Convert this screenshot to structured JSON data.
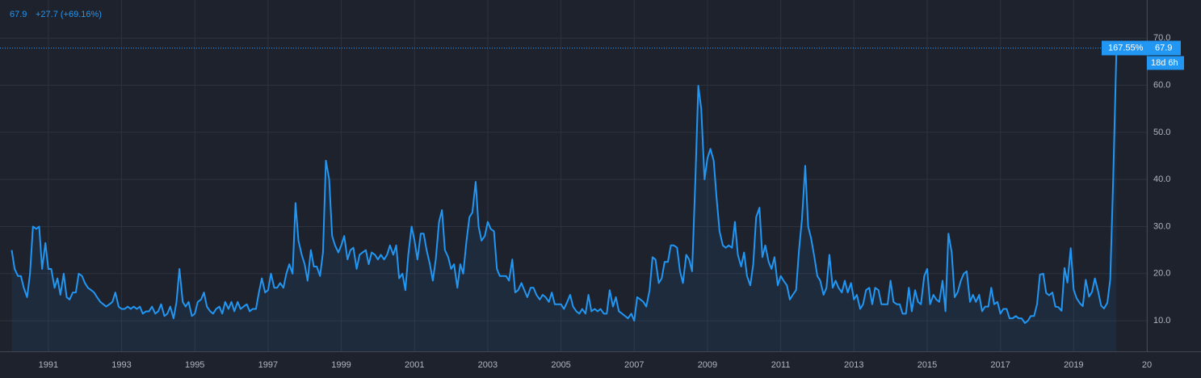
{
  "chart_data": {
    "type": "line",
    "header_change": "+27.7 (+69.16%)",
    "price_label_percent": "167.55%",
    "countdown": "18d 6h",
    "color": "#2196f3",
    "grid": true,
    "xlim": [
      1989.68,
      2021.0
    ],
    "xticks": [
      1991,
      1993,
      1995,
      1997,
      1999,
      2001,
      2003,
      2005,
      2007,
      2009,
      2011,
      2013,
      2015,
      2017,
      2019,
      {
        "value": 2021,
        "label": "20"
      }
    ],
    "ylim": [
      3.5,
      78.1
    ],
    "yticks": [
      {
        "value": 10,
        "label": "10.0"
      },
      {
        "value": 20,
        "label": "20.0"
      },
      {
        "value": 30,
        "label": "30.0"
      },
      {
        "value": 40,
        "label": "40.0"
      },
      {
        "value": 50,
        "label": "50.0"
      },
      {
        "value": 60,
        "label": "60.0"
      },
      {
        "value": 70,
        "label": "70.0"
      }
    ],
    "x": [
      1990,
      1990.08,
      1990.17,
      1990.25,
      1990.33,
      1990.42,
      1990.5,
      1990.58,
      1990.67,
      1990.75,
      1990.83,
      1990.92,
      1991,
      1991.08,
      1991.17,
      1991.25,
      1991.33,
      1991.42,
      1991.5,
      1991.58,
      1991.67,
      1991.75,
      1991.83,
      1991.92,
      1992,
      1992.08,
      1992.17,
      1992.25,
      1992.33,
      1992.42,
      1992.5,
      1992.58,
      1992.67,
      1992.75,
      1992.83,
      1992.92,
      1993,
      1993.08,
      1993.17,
      1993.25,
      1993.33,
      1993.42,
      1993.5,
      1993.58,
      1993.67,
      1993.75,
      1993.83,
      1993.92,
      1994,
      1994.08,
      1994.17,
      1994.25,
      1994.33,
      1994.42,
      1994.5,
      1994.58,
      1994.67,
      1994.75,
      1994.83,
      1994.92,
      1995,
      1995.08,
      1995.17,
      1995.25,
      1995.33,
      1995.42,
      1995.5,
      1995.58,
      1995.67,
      1995.75,
      1995.83,
      1995.92,
      1996,
      1996.08,
      1996.17,
      1996.25,
      1996.33,
      1996.42,
      1996.5,
      1996.58,
      1996.67,
      1996.75,
      1996.83,
      1996.92,
      1997,
      1997.08,
      1997.17,
      1997.25,
      1997.33,
      1997.42,
      1997.5,
      1997.58,
      1997.67,
      1997.75,
      1997.83,
      1997.92,
      1998,
      1998.08,
      1998.17,
      1998.25,
      1998.33,
      1998.42,
      1998.5,
      1998.58,
      1998.67,
      1998.75,
      1998.83,
      1998.92,
      1999,
      1999.08,
      1999.17,
      1999.25,
      1999.33,
      1999.42,
      1999.5,
      1999.58,
      1999.67,
      1999.75,
      1999.83,
      1999.92,
      2000,
      2000.08,
      2000.17,
      2000.25,
      2000.33,
      2000.42,
      2000.5,
      2000.58,
      2000.67,
      2000.75,
      2000.83,
      2000.92,
      2001,
      2001.08,
      2001.17,
      2001.25,
      2001.33,
      2001.42,
      2001.5,
      2001.58,
      2001.67,
      2001.75,
      2001.83,
      2001.92,
      2002,
      2002.08,
      2002.17,
      2002.25,
      2002.33,
      2002.42,
      2002.5,
      2002.58,
      2002.67,
      2002.75,
      2002.83,
      2002.92,
      2003,
      2003.08,
      2003.17,
      2003.25,
      2003.33,
      2003.42,
      2003.5,
      2003.58,
      2003.67,
      2003.75,
      2003.83,
      2003.92,
      2004,
      2004.08,
      2004.17,
      2004.25,
      2004.33,
      2004.42,
      2004.5,
      2004.58,
      2004.67,
      2004.75,
      2004.83,
      2004.92,
      2005,
      2005.08,
      2005.17,
      2005.25,
      2005.33,
      2005.42,
      2005.5,
      2005.58,
      2005.67,
      2005.75,
      2005.83,
      2005.92,
      2006,
      2006.08,
      2006.17,
      2006.25,
      2006.33,
      2006.42,
      2006.5,
      2006.58,
      2006.67,
      2006.75,
      2006.83,
      2006.92,
      2007,
      2007.08,
      2007.17,
      2007.25,
      2007.33,
      2007.42,
      2007.5,
      2007.58,
      2007.67,
      2007.75,
      2007.83,
      2007.92,
      2008,
      2008.08,
      2008.17,
      2008.25,
      2008.33,
      2008.42,
      2008.5,
      2008.58,
      2008.67,
      2008.75,
      2008.83,
      2008.92,
      2009,
      2009.08,
      2009.17,
      2009.25,
      2009.33,
      2009.42,
      2009.5,
      2009.58,
      2009.67,
      2009.75,
      2009.83,
      2009.92,
      2010,
      2010.08,
      2010.17,
      2010.25,
      2010.33,
      2010.42,
      2010.5,
      2010.58,
      2010.67,
      2010.75,
      2010.83,
      2010.92,
      2011,
      2011.08,
      2011.17,
      2011.25,
      2011.33,
      2011.42,
      2011.5,
      2011.58,
      2011.67,
      2011.75,
      2011.83,
      2011.92,
      2012,
      2012.08,
      2012.17,
      2012.25,
      2012.33,
      2012.42,
      2012.5,
      2012.58,
      2012.67,
      2012.75,
      2012.83,
      2012.92,
      2013,
      2013.08,
      2013.17,
      2013.25,
      2013.33,
      2013.42,
      2013.5,
      2013.58,
      2013.67,
      2013.75,
      2013.83,
      2013.92,
      2014,
      2014.08,
      2014.17,
      2014.25,
      2014.33,
      2014.42,
      2014.5,
      2014.58,
      2014.67,
      2014.75,
      2014.83,
      2014.92,
      2015,
      2015.08,
      2015.17,
      2015.25,
      2015.33,
      2015.42,
      2015.5,
      2015.58,
      2015.67,
      2015.75,
      2015.83,
      2015.92,
      2016,
      2016.08,
      2016.17,
      2016.25,
      2016.33,
      2016.42,
      2016.5,
      2016.58,
      2016.67,
      2016.75,
      2016.83,
      2016.92,
      2017,
      2017.08,
      2017.17,
      2017.25,
      2017.33,
      2017.42,
      2017.5,
      2017.58,
      2017.67,
      2017.75,
      2017.83,
      2017.92,
      2018,
      2018.08,
      2018.17,
      2018.25,
      2018.33,
      2018.42,
      2018.5,
      2018.58,
      2018.67,
      2018.75,
      2018.83,
      2018.92,
      2019,
      2019.08,
      2019.17,
      2019.25,
      2019.33,
      2019.42,
      2019.5,
      2019.58,
      2019.67,
      2019.75,
      2019.83,
      2019.92,
      2020,
      2020.08,
      2020.17
    ],
    "values": [
      25,
      21,
      19.5,
      19.5,
      17,
      15,
      20,
      30,
      29.5,
      30,
      21,
      26.5,
      21,
      21,
      17,
      19,
      15.5,
      20,
      15,
      14.5,
      16,
      16,
      20,
      19.5,
      18,
      17,
      16.5,
      16,
      15,
      14,
      13.5,
      13,
      13.5,
      14,
      16,
      13,
      12.5,
      12.5,
      13,
      12.5,
      13,
      12.5,
      13,
      11.5,
      12,
      12,
      13,
      11.5,
      12,
      13.5,
      11,
      11.5,
      13,
      10.5,
      14,
      21,
      14,
      13,
      14,
      11,
      11.5,
      14,
      14.5,
      16,
      13,
      12,
      11.5,
      12.5,
      13,
      11.5,
      14,
      12.5,
      14,
      12,
      14,
      12.5,
      13,
      13.5,
      12,
      12.5,
      12.5,
      16,
      19,
      16,
      16.5,
      20,
      17,
      17,
      18,
      17,
      20,
      22,
      20,
      35,
      27,
      24,
      22,
      18.5,
      25,
      21.5,
      21.5,
      19.5,
      24.5,
      44,
      40,
      28,
      26,
      24.5,
      26,
      28,
      23,
      25,
      25.5,
      21,
      24,
      24.5,
      25,
      22,
      24.5,
      24,
      23,
      24,
      23,
      24,
      26,
      24,
      26,
      19,
      20,
      16.5,
      24,
      30,
      27,
      23,
      28.5,
      28.5,
      25,
      22,
      18.5,
      23,
      31,
      33.5,
      25,
      23.5,
      21,
      22,
      17,
      22,
      20,
      27,
      32,
      33,
      39.5,
      30,
      27,
      28,
      31,
      29.5,
      29,
      21,
      19.5,
      19.5,
      19.5,
      18.5,
      23,
      16,
      16.5,
      18,
      16.5,
      15,
      17,
      17,
      15.5,
      14.5,
      15.5,
      15,
      14,
      16,
      13.5,
      13.5,
      13.5,
      12.5,
      14,
      15.5,
      13,
      12,
      11.5,
      12.5,
      11.5,
      15.5,
      12,
      12.5,
      12,
      12.5,
      11.5,
      11.5,
      16.5,
      13,
      15,
      12,
      11.5,
      11,
      10.5,
      11.5,
      10,
      15,
      14.5,
      14,
      13,
      16.5,
      23.5,
      23,
      18,
      19,
      22.5,
      22.5,
      26,
      26,
      25.5,
      20.5,
      18,
      24,
      23,
      20.5,
      40,
      59.9,
      55,
      40,
      44.5,
      46.5,
      44,
      36,
      29,
      26,
      25.5,
      26,
      25.5,
      31,
      24,
      21.5,
      24.5,
      19.5,
      17.5,
      22,
      32,
      34,
      23.5,
      26,
      22.5,
      21,
      23.5,
      17.5,
      19.5,
      18.5,
      17.5,
      14.5,
      15.5,
      16.5,
      25,
      31.5,
      42.9,
      30,
      27.5,
      23.5,
      19.5,
      18.5,
      15.5,
      17,
      24,
      17,
      18.5,
      17,
      16,
      18.5,
      16,
      18,
      14.5,
      15.5,
      12.5,
      13.5,
      16.5,
      17,
      13.5,
      17,
      16.5,
      13.5,
      13.5,
      13.5,
      18.5,
      14,
      13.5,
      13.5,
      11.5,
      11.5,
      17,
      12,
      16.5,
      14,
      13.5,
      19.5,
      21,
      13.5,
      15.5,
      14.5,
      14,
      18.5,
      12,
      28.5,
      24.5,
      15,
      16,
      18.5,
      20,
      20.5,
      14,
      15.5,
      14,
      15.5,
      12,
      13,
      13,
      17,
      13.5,
      14,
      11.5,
      12.5,
      12.5,
      10.5,
      10.5,
      11,
      10.5,
      10.5,
      9.5,
      10,
      11,
      11,
      13.5,
      19.8,
      20,
      15.9,
      15.4,
      16,
      13,
      12.9,
      12.1,
      21.2,
      18.1,
      25.4,
      16.6,
      14.8,
      13.7,
      13.1,
      18.7,
      15.1,
      16.1,
      19,
      16.2,
      13.2,
      12.6,
      13.8,
      18.8,
      40.1,
      67.9
    ]
  }
}
